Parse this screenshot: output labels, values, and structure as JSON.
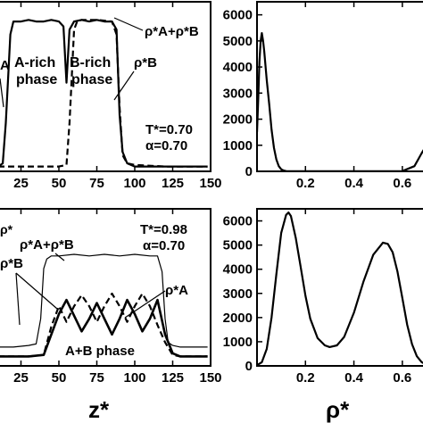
{
  "colors": {
    "ink": "#000000",
    "background": "#ffffff"
  },
  "chart_data": [
    {
      "type": "line",
      "panel": "top-left",
      "xlabel": "",
      "ylabel": "",
      "xlim": [
        10,
        150
      ],
      "x_ticks": [
        25,
        50,
        75,
        100,
        125,
        150
      ],
      "annotations": [
        "T*=0.70",
        "α=0.70",
        "A-rich phase",
        "B-rich phase",
        "ρ*A+ρ*B",
        "ρ*B",
        "A"
      ],
      "text": {
        "T_line": "T*=0.70",
        "alpha_line": "α=0.70",
        "label_A_rich_1": "A-rich",
        "label_A_rich_2": "phase",
        "label_B_rich_1": "B-rich",
        "label_B_rich_2": "phase",
        "rho_total_label": "ρ*A+ρ*B",
        "rho_B_label": "ρ*B",
        "edge_label": "A"
      },
      "series": [
        {
          "style": "solid",
          "x": [
            10,
            13,
            15,
            18,
            20,
            25,
            30,
            35,
            40,
            45,
            50,
            53,
            55,
            57,
            60,
            65,
            70,
            75,
            80,
            85,
            88,
            90,
            92,
            95,
            100,
            110,
            120,
            130,
            140,
            148
          ],
          "y": [
            0.03,
            0.05,
            0.3,
            0.85,
            0.93,
            0.93,
            0.94,
            0.93,
            0.93,
            0.94,
            0.93,
            0.9,
            0.55,
            0.88,
            0.93,
            0.94,
            0.93,
            0.94,
            0.93,
            0.93,
            0.88,
            0.35,
            0.12,
            0.05,
            0.03,
            0.03,
            0.03,
            0.03,
            0.03,
            0.03
          ]
        },
        {
          "style": "dashed",
          "x": [
            10,
            40,
            50,
            55,
            57,
            60,
            62,
            65,
            75,
            85,
            88,
            90,
            92,
            95,
            100,
            120,
            140,
            148
          ],
          "y": [
            0.03,
            0.03,
            0.03,
            0.04,
            0.3,
            0.88,
            0.93,
            0.94,
            0.94,
            0.93,
            0.85,
            0.4,
            0.1,
            0.05,
            0.04,
            0.03,
            0.03,
            0.03
          ]
        }
      ]
    },
    {
      "type": "line",
      "panel": "top-right",
      "xlim": [
        0,
        0.7
      ],
      "ylim": [
        0,
        6500
      ],
      "x_ticks": [
        0.2,
        0.4,
        0.6
      ],
      "y_ticks": [
        0,
        1000,
        2000,
        3000,
        4000,
        5000,
        6000
      ],
      "series": [
        {
          "x": [
            0.0,
            0.005,
            0.01,
            0.015,
            0.02,
            0.025,
            0.03,
            0.04,
            0.05,
            0.06,
            0.07,
            0.08,
            0.09,
            0.1,
            0.11,
            0.12,
            0.14,
            0.16,
            0.2,
            0.3,
            0.4,
            0.5,
            0.6,
            0.65,
            0.68,
            0.7
          ],
          "y": [
            1500,
            2800,
            4200,
            5000,
            5300,
            5000,
            4600,
            3500,
            2600,
            1600,
            900,
            450,
            200,
            80,
            30,
            10,
            5,
            5,
            5,
            5,
            5,
            5,
            10,
            200,
            700,
            1000
          ]
        }
      ]
    },
    {
      "type": "line",
      "panel": "bottom-left",
      "xlabel": "z*",
      "ylabel": "",
      "xlim": [
        10,
        150
      ],
      "x_ticks": [
        25,
        50,
        75,
        100,
        125,
        150
      ],
      "annotations": [
        "T*=0.98",
        "α=0.70",
        "ρ*A+ρ*B",
        "ρ*B",
        "ρ*A",
        "A+B phase"
      ],
      "text": {
        "T_line": "T*=0.98",
        "alpha_line": "α=0.70",
        "rho_total_label": "ρ*A+ρ*B",
        "rho_B_label": "ρ*B",
        "rho_A_label": "ρ*A",
        "phase_label": "A+B phase",
        "edge_label": "ρ*"
      },
      "series": [
        {
          "style": "solid-thin",
          "x": [
            10,
            20,
            30,
            35,
            38,
            40,
            42,
            45,
            50,
            60,
            70,
            80,
            90,
            100,
            110,
            115,
            118,
            120,
            122,
            125,
            130,
            148
          ],
          "y": [
            0.12,
            0.12,
            0.13,
            0.14,
            0.3,
            0.62,
            0.68,
            0.7,
            0.7,
            0.71,
            0.7,
            0.71,
            0.7,
            0.71,
            0.7,
            0.7,
            0.6,
            0.3,
            0.15,
            0.13,
            0.12,
            0.12
          ]
        },
        {
          "style": "solid-thick",
          "x": [
            10,
            20,
            30,
            40,
            45,
            50,
            55,
            60,
            65,
            70,
            75,
            80,
            85,
            90,
            95,
            100,
            105,
            110,
            115,
            120,
            125,
            130,
            148
          ],
          "y": [
            0.06,
            0.06,
            0.06,
            0.07,
            0.2,
            0.33,
            0.42,
            0.32,
            0.22,
            0.3,
            0.4,
            0.3,
            0.2,
            0.3,
            0.42,
            0.33,
            0.22,
            0.3,
            0.42,
            0.2,
            0.08,
            0.06,
            0.06
          ]
        },
        {
          "style": "dashed",
          "x": [
            10,
            20,
            30,
            40,
            45,
            50,
            55,
            60,
            65,
            70,
            75,
            80,
            85,
            90,
            95,
            100,
            105,
            110,
            115,
            120,
            125,
            130,
            148
          ],
          "y": [
            0.06,
            0.06,
            0.06,
            0.07,
            0.25,
            0.38,
            0.28,
            0.38,
            0.45,
            0.38,
            0.28,
            0.38,
            0.46,
            0.38,
            0.28,
            0.38,
            0.46,
            0.38,
            0.26,
            0.15,
            0.07,
            0.06,
            0.06
          ]
        }
      ]
    },
    {
      "type": "line",
      "panel": "bottom-right",
      "xlabel": "ρ*",
      "xlim": [
        0,
        0.7
      ],
      "ylim": [
        0,
        6500
      ],
      "x_ticks": [
        0.2,
        0.4,
        0.6
      ],
      "y_ticks": [
        0,
        1000,
        2000,
        3000,
        4000,
        5000,
        6000
      ],
      "series": [
        {
          "x": [
            0.0,
            0.02,
            0.04,
            0.06,
            0.08,
            0.1,
            0.12,
            0.13,
            0.14,
            0.16,
            0.18,
            0.2,
            0.22,
            0.25,
            0.28,
            0.3,
            0.33,
            0.36,
            0.4,
            0.44,
            0.48,
            0.52,
            0.54,
            0.56,
            0.58,
            0.6,
            0.62,
            0.64,
            0.66,
            0.68,
            0.7
          ],
          "y": [
            30,
            150,
            700,
            2000,
            3800,
            5500,
            6250,
            6350,
            6200,
            5300,
            4100,
            2900,
            1950,
            1150,
            850,
            780,
            850,
            1200,
            2200,
            3500,
            4600,
            5100,
            5050,
            4700,
            3900,
            2800,
            1700,
            900,
            400,
            150,
            50
          ]
        }
      ]
    }
  ]
}
